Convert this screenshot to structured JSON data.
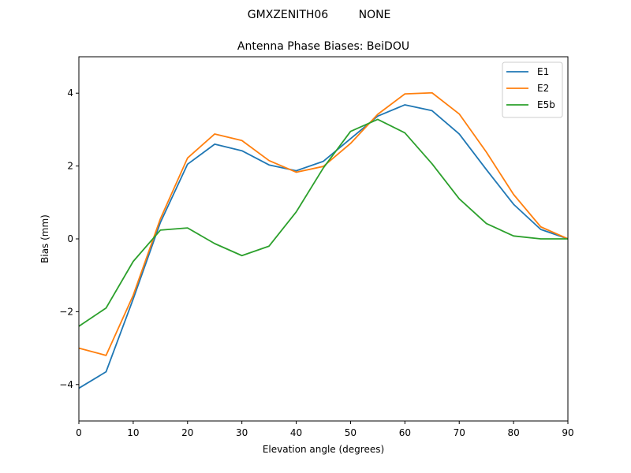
{
  "figure": {
    "suptitle_left": "GMXZENITH06",
    "suptitle_right": "NONE"
  },
  "chart_data": {
    "type": "line",
    "title": "Antenna Phase Biases: BeiDOU",
    "xlabel": "Elevation angle (degrees)",
    "ylabel": "Bias (mm)",
    "xlim": [
      0,
      90
    ],
    "ylim": [
      -5,
      5
    ],
    "xticks": [
      0,
      10,
      20,
      30,
      40,
      50,
      60,
      70,
      80,
      90
    ],
    "yticks": [
      -4,
      -2,
      0,
      2,
      4
    ],
    "x": [
      0,
      5,
      10,
      15,
      20,
      25,
      30,
      35,
      40,
      45,
      50,
      55,
      60,
      65,
      70,
      75,
      80,
      85,
      90
    ],
    "grid": false,
    "legend_position": "top-right",
    "series": [
      {
        "name": "E1",
        "color": "#1f77b4",
        "values": [
          -4.1,
          -3.65,
          -1.65,
          0.45,
          2.05,
          2.6,
          2.42,
          2.03,
          1.87,
          2.13,
          2.75,
          3.37,
          3.68,
          3.52,
          2.88,
          1.9,
          0.95,
          0.26,
          0.0
        ]
      },
      {
        "name": "E2",
        "color": "#ff7f0e",
        "values": [
          -3.0,
          -3.2,
          -1.55,
          0.55,
          2.22,
          2.88,
          2.7,
          2.15,
          1.83,
          1.99,
          2.62,
          3.42,
          3.98,
          4.01,
          3.43,
          2.38,
          1.22,
          0.33,
          0.0
        ]
      },
      {
        "name": "E5b",
        "color": "#2ca02c",
        "values": [
          -2.4,
          -1.9,
          -0.62,
          0.24,
          0.3,
          -0.13,
          -0.46,
          -0.2,
          0.74,
          1.95,
          2.95,
          3.28,
          2.91,
          2.06,
          1.1,
          0.42,
          0.08,
          0.0,
          0.0
        ]
      }
    ]
  }
}
